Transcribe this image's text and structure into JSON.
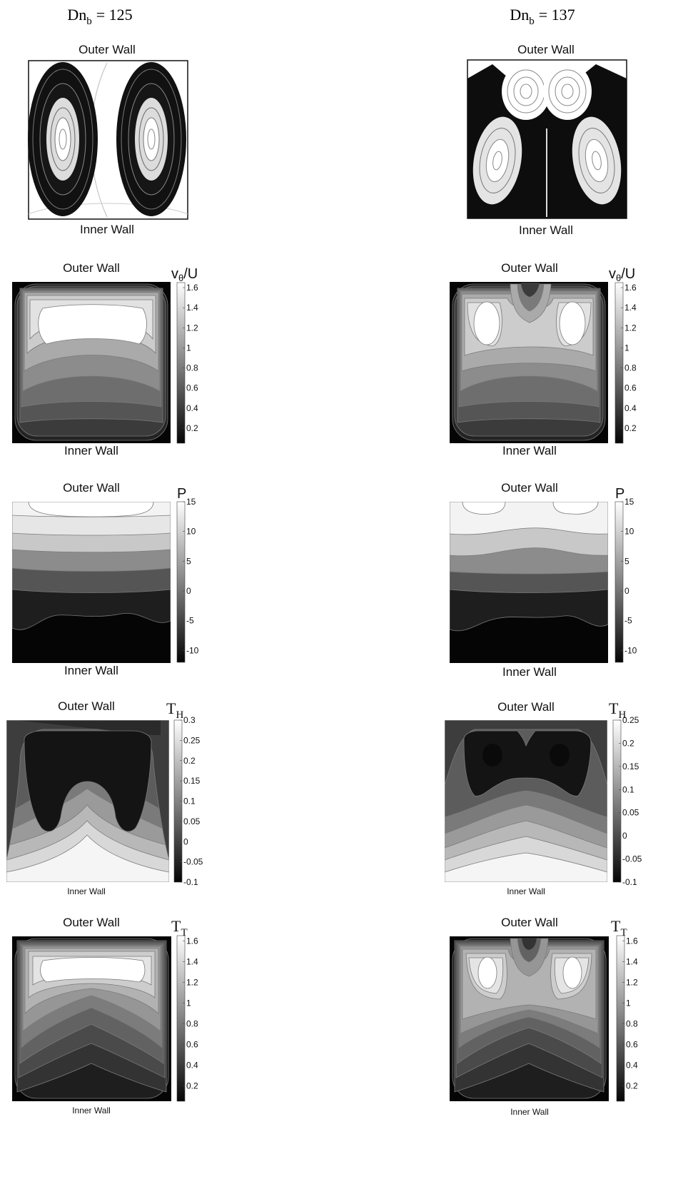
{
  "columns": [
    {
      "label_base": "Dn",
      "label_sub": "b",
      "label_value": "= 125"
    },
    {
      "label_base": "Dn",
      "label_sub": "b",
      "label_value": "= 137"
    }
  ],
  "wall_labels": {
    "outer": "Outer Wall",
    "inner": "Inner Wall"
  },
  "colors": {
    "dark": "#050505",
    "light": "#ffffff",
    "line": "#7a7a7a"
  },
  "chart_data": [
    {
      "type": "streamlines",
      "row": "streamlines",
      "column": "Dn_b = 125",
      "vortex_count": 2
    },
    {
      "type": "streamlines",
      "row": "streamlines",
      "column": "Dn_b = 137",
      "vortex_count": 4
    },
    {
      "type": "contour",
      "row": "velocity",
      "column": "Dn_b = 125",
      "colorbar": {
        "title": "v",
        "title_sub": "θ",
        "title_tail": "/U",
        "ticks": [
          "1.6",
          "1.4",
          "1.2",
          "1",
          "0.8",
          "0.6",
          "0.4",
          "0.2"
        ],
        "tick_values": [
          1.6,
          1.4,
          1.2,
          1,
          0.8,
          0.6,
          0.4,
          0.2
        ],
        "range": [
          0.05,
          1.65
        ]
      }
    },
    {
      "type": "contour",
      "row": "velocity",
      "column": "Dn_b = 137",
      "colorbar": {
        "title": "v",
        "title_sub": "θ",
        "title_tail": "/U",
        "ticks": [
          "1.6",
          "1.4",
          "1.2",
          "1",
          "0.8",
          "0.6",
          "0.4",
          "0.2"
        ],
        "tick_values": [
          1.6,
          1.4,
          1.2,
          1,
          0.8,
          0.6,
          0.4,
          0.2
        ],
        "range": [
          0.05,
          1.65
        ]
      }
    },
    {
      "type": "contour",
      "row": "pressure",
      "column": "Dn_b = 125",
      "colorbar": {
        "title": "P",
        "title_sub": "",
        "title_tail": "",
        "ticks": [
          "15",
          "10",
          "5",
          "0",
          "-5",
          "-10"
        ],
        "tick_values": [
          15,
          10,
          5,
          0,
          -5,
          -10
        ],
        "range": [
          -12,
          15
        ]
      }
    },
    {
      "type": "contour",
      "row": "pressure",
      "column": "Dn_b = 137",
      "colorbar": {
        "title": "P",
        "title_sub": "",
        "title_tail": "",
        "ticks": [
          "15",
          "10",
          "5",
          "0",
          "-5",
          "-10"
        ],
        "tick_values": [
          15,
          10,
          5,
          0,
          -5,
          -10
        ],
        "range": [
          -12,
          15
        ]
      }
    },
    {
      "type": "contour",
      "row": "temperature_H",
      "column": "Dn_b = 125",
      "colorbar": {
        "title": "T",
        "title_sub": "H",
        "title_tail": "",
        "ticks": [
          "0.3",
          "0.25",
          "0.2",
          "0.15",
          "0.1",
          "0.05",
          "0",
          "-0.05",
          "-0.1"
        ],
        "tick_values": [
          0.3,
          0.25,
          0.2,
          0.15,
          0.1,
          0.05,
          0,
          -0.05,
          -0.1
        ],
        "range": [
          -0.1,
          0.3
        ]
      }
    },
    {
      "type": "contour",
      "row": "temperature_H",
      "column": "Dn_b = 137",
      "colorbar": {
        "title": "T",
        "title_sub": "H",
        "title_tail": "",
        "ticks": [
          "0.25",
          "0.2",
          "0.15",
          "0.1",
          "0.05",
          "0",
          "-0.05",
          "-0.1"
        ],
        "tick_values": [
          0.25,
          0.2,
          0.15,
          0.1,
          0.05,
          0,
          -0.05,
          -0.1
        ],
        "range": [
          -0.1,
          0.25
        ]
      }
    },
    {
      "type": "contour",
      "row": "temperature_T",
      "column": "Dn_b = 125",
      "colorbar": {
        "title": "T",
        "title_sub": "T",
        "title_tail": "",
        "ticks": [
          "1.6",
          "1.4",
          "1.2",
          "1",
          "0.8",
          "0.6",
          "0.4",
          "0.2"
        ],
        "tick_values": [
          1.6,
          1.4,
          1.2,
          1,
          0.8,
          0.6,
          0.4,
          0.2
        ],
        "range": [
          0.05,
          1.65
        ]
      }
    },
    {
      "type": "contour",
      "row": "temperature_T",
      "column": "Dn_b = 137",
      "colorbar": {
        "title": "T",
        "title_sub": "T",
        "title_tail": "",
        "ticks": [
          "1.6",
          "1.4",
          "1.2",
          "1",
          "0.8",
          "0.6",
          "0.4",
          "0.2"
        ],
        "tick_values": [
          1.6,
          1.4,
          1.2,
          1,
          0.8,
          0.6,
          0.4,
          0.2
        ],
        "range": [
          0.05,
          1.65
        ]
      }
    }
  ]
}
